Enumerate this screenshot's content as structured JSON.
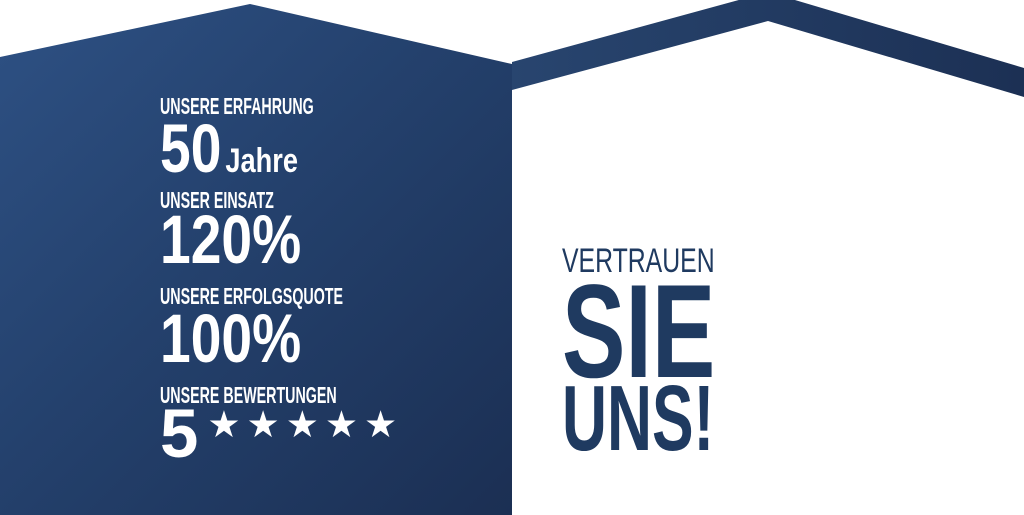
{
  "colors": {
    "panel_gradient_start": "#2e5184",
    "panel_gradient_end": "#1b2f53",
    "roofline_blue": "#1f3560",
    "headline_text": "#1f3a60",
    "stat_text": "#ffffff"
  },
  "stats_panel": {
    "items": [
      {
        "label": "UNSERE ERFAHRUNG",
        "value": "50",
        "unit": "Jahre"
      },
      {
        "label": "UNSER EINSATZ",
        "value": "120%",
        "unit": ""
      },
      {
        "label": "UNSERE ERFOLGSQUOTE",
        "value": "100%",
        "unit": ""
      },
      {
        "label": "UNSERE BEWERTUNGEN",
        "value": "5",
        "unit": "",
        "stars_count": 5,
        "stars_display": "★★★★★"
      }
    ]
  },
  "headline": {
    "line1": "VERTRAUEN",
    "line2": "SIE",
    "line3": "UNS!"
  }
}
